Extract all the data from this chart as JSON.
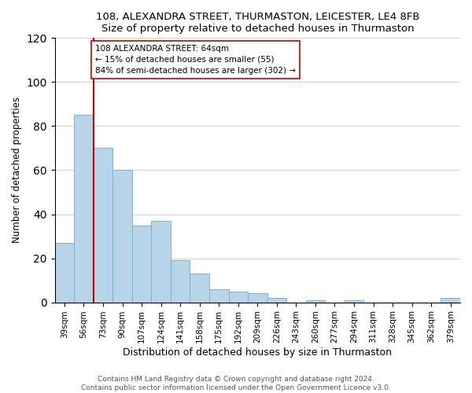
{
  "title": "108, ALEXANDRA STREET, THURMASTON, LEICESTER, LE4 8FB",
  "subtitle": "Size of property relative to detached houses in Thurmaston",
  "xlabel": "Distribution of detached houses by size in Thurmaston",
  "ylabel": "Number of detached properties",
  "bar_labels": [
    "39sqm",
    "56sqm",
    "73sqm",
    "90sqm",
    "107sqm",
    "124sqm",
    "141sqm",
    "158sqm",
    "175sqm",
    "192sqm",
    "209sqm",
    "226sqm",
    "243sqm",
    "260sqm",
    "277sqm",
    "294sqm",
    "311sqm",
    "328sqm",
    "345sqm",
    "362sqm",
    "379sqm"
  ],
  "bar_values": [
    27,
    85,
    70,
    60,
    35,
    37,
    19,
    13,
    6,
    5,
    4,
    2,
    0,
    1,
    0,
    1,
    0,
    0,
    0,
    0,
    2
  ],
  "bar_color": "#b8d4e8",
  "bar_edge_color": "#7ab4d4",
  "vline_x_index": 1,
  "vline_color": "#cc0000",
  "annotation_text": "108 ALEXANDRA STREET: 64sqm\n← 15% of detached houses are smaller (55)\n84% of semi-detached houses are larger (302) →",
  "annotation_box_edgecolor": "#cc0000",
  "annotation_box_facecolor": "white",
  "ylim": [
    0,
    120
  ],
  "yticks": [
    0,
    20,
    40,
    60,
    80,
    100,
    120
  ],
  "footer": "Contains HM Land Registry data © Crown copyright and database right 2024.\nContains public sector information licensed under the Open Government Licence v3.0.",
  "title_fontsize": 9.5,
  "subtitle_fontsize": 9,
  "xlabel_fontsize": 9,
  "ylabel_fontsize": 8.5,
  "tick_fontsize": 7.5,
  "footer_fontsize": 6.5,
  "annot_fontsize": 7.5
}
